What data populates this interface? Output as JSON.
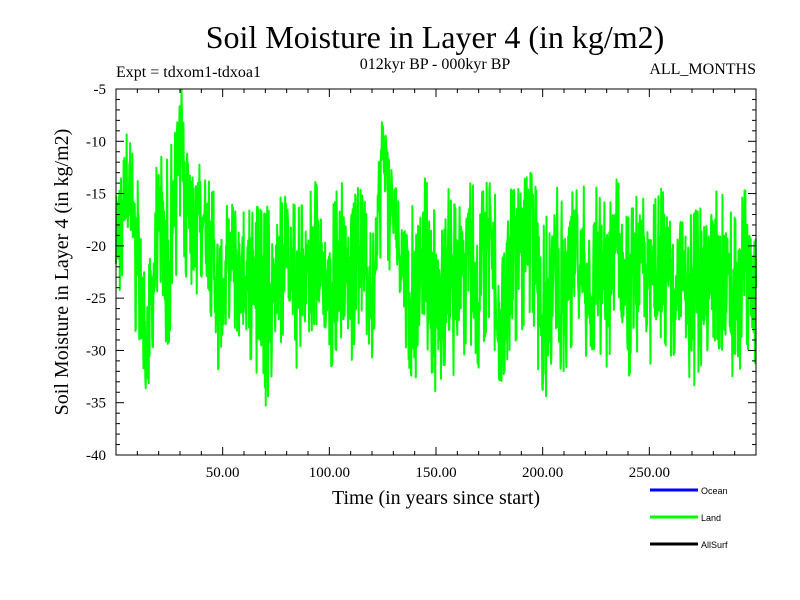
{
  "chart_data": {
    "type": "line",
    "title": "Soil Moisture in Layer 4 (in kg/m2)",
    "subtitle": "012kyr BP - 000kyr BP",
    "experiment": "Expt = tdxom1-tdxoa1",
    "months": "ALL_MONTHS",
    "xlabel": "Time (in years since start)",
    "ylabel": "Soil Moisture in Layer 4 (in kg/m2)",
    "xlim": [
      0,
      300
    ],
    "ylim": [
      -40,
      -5
    ],
    "xticks": [
      50,
      100,
      150,
      200,
      250
    ],
    "xtick_labels": [
      "50.00",
      "100.00",
      "150.00",
      "200.00",
      "250.00"
    ],
    "yticks": [
      -40,
      -35,
      -30,
      -25,
      -20,
      -15,
      -10,
      -5
    ],
    "ytick_labels": [
      "-40",
      "-35",
      "-30",
      "-25",
      "-20",
      "-15",
      "-10",
      "-5"
    ],
    "legend": [
      {
        "name": "Ocean",
        "color": "#0000ff"
      },
      {
        "name": "Land",
        "color": "#00ff00"
      },
      {
        "name": "AllSurf",
        "color": "#000000"
      }
    ],
    "series": [
      {
        "name": "Land",
        "color": "#00ff00",
        "x": [
          0,
          5,
          10,
          15,
          20,
          25,
          30,
          35,
          40,
          45,
          50,
          55,
          60,
          65,
          70,
          75,
          80,
          85,
          90,
          95,
          100,
          105,
          110,
          115,
          120,
          125,
          130,
          135,
          140,
          145,
          150,
          155,
          160,
          165,
          170,
          175,
          180,
          185,
          190,
          195,
          200,
          205,
          210,
          215,
          220,
          225,
          230,
          235,
          240,
          245,
          250,
          255,
          260,
          265,
          270,
          275,
          280,
          285,
          290,
          295,
          300
        ],
        "y": [
          -20,
          -13,
          -22,
          -29,
          -18,
          -24,
          -7,
          -20,
          -15,
          -22,
          -25,
          -20,
          -24,
          -22,
          -27,
          -23,
          -20,
          -26,
          -22,
          -21,
          -25,
          -21,
          -24,
          -19,
          -24,
          -10,
          -17,
          -22,
          -25,
          -21,
          -26,
          -22,
          -25,
          -20,
          -23,
          -19,
          -26,
          -22,
          -21,
          -17,
          -28,
          -22,
          -25,
          -21,
          -23,
          -22,
          -24,
          -20,
          -26,
          -22,
          -24,
          -21,
          -23,
          -22,
          -26,
          -24,
          -21,
          -23,
          -27,
          -22,
          -24
        ],
        "high": [
          -14,
          -9,
          -14,
          -16,
          -12,
          -12,
          -7,
          -14,
          -12,
          -15,
          -18,
          -14,
          -17,
          -17,
          -17,
          -16,
          -16,
          -17,
          -16,
          -14,
          -18,
          -14,
          -18,
          -13,
          -17,
          -9,
          -14,
          -16,
          -17,
          -14,
          -18,
          -15,
          -17,
          -14,
          -16,
          -14,
          -17,
          -15,
          -15,
          -13,
          -19,
          -14,
          -17,
          -15,
          -15,
          -15,
          -17,
          -14,
          -18,
          -15,
          -17,
          -15,
          -16,
          -16,
          -18,
          -16,
          -15,
          -16,
          -18,
          -15,
          -18
        ],
        "low": [
          -26,
          -20,
          -29,
          -33,
          -25,
          -31,
          -17,
          -27,
          -22,
          -30,
          -32,
          -27,
          -29,
          -31,
          -35,
          -30,
          -27,
          -32,
          -28,
          -27,
          -32,
          -28,
          -31,
          -26,
          -30,
          -18,
          -24,
          -29,
          -33,
          -28,
          -34,
          -30,
          -33,
          -28,
          -31,
          -26,
          -33,
          -29,
          -28,
          -25,
          -36,
          -29,
          -32,
          -28,
          -30,
          -29,
          -31,
          -27,
          -32,
          -29,
          -31,
          -28,
          -30,
          -29,
          -33,
          -31,
          -28,
          -30,
          -33,
          -29,
          -31
        ]
      }
    ]
  }
}
